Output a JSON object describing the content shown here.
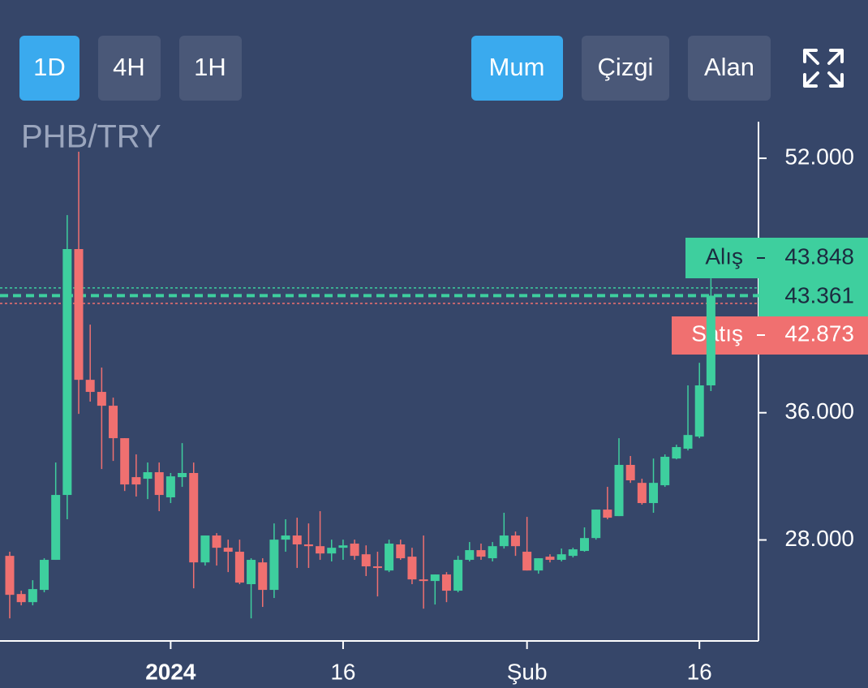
{
  "toolbar": {
    "intervals": [
      "1D",
      "4H",
      "1H"
    ],
    "chart_types": [
      "Mum",
      "Çizgi",
      "Alan"
    ]
  },
  "chart_data": {
    "type": "candlestick",
    "title": "PHB/TRY",
    "up_color": "#3ecf9e",
    "down_color": "#f07070",
    "categories": [
      null,
      null,
      null,
      null,
      null,
      null,
      null,
      null,
      null,
      null,
      null,
      null,
      null,
      null,
      "2024",
      null,
      null,
      null,
      null,
      null,
      null,
      null,
      null,
      null,
      null,
      null,
      null,
      null,
      null,
      "16",
      null,
      null,
      null,
      null,
      null,
      null,
      null,
      null,
      null,
      null,
      null,
      null,
      null,
      null,
      null,
      "Şub",
      null,
      null,
      null,
      null,
      null,
      null,
      null,
      null,
      null,
      null,
      null,
      null,
      null,
      null,
      "16",
      null
    ],
    "open": [
      27.0,
      24.6,
      24.09,
      24.86,
      26.75,
      30.83,
      46.29,
      38.07,
      37.31,
      36.44,
      34.4,
      31.95,
      31.85,
      32.26,
      30.68,
      31.95,
      32.21,
      26.59,
      28.28,
      27.51,
      27.26,
      25.22,
      26.59,
      24.86,
      28.02,
      28.28,
      27.72,
      27.61,
      27.15,
      27.51,
      27.77,
      27.1,
      26.34,
      26.08,
      27.72,
      26.95,
      25.52,
      25.42,
      25.83,
      24.81,
      26.75,
      27.36,
      26.85,
      27.61,
      28.28,
      27.26,
      26.08,
      26.95,
      26.75,
      27.0,
      27.31,
      28.12,
      29.91,
      29.5,
      32.72,
      31.59,
      30.32,
      31.44,
      33.12,
      33.74,
      34.5,
      37.72
    ],
    "high": [
      27.26,
      24.81,
      25.47,
      26.85,
      32.87,
      48.43,
      52.41,
      41.54,
      38.84,
      36.95,
      34.4,
      33.38,
      32.87,
      32.87,
      32.21,
      34.09,
      32.87,
      28.28,
      28.43,
      28.02,
      28.02,
      26.85,
      26.85,
      29.04,
      29.3,
      29.4,
      29.04,
      29.81,
      28.02,
      28.02,
      28.02,
      27.66,
      27.26,
      28.02,
      28.02,
      27.51,
      28.28,
      25.83,
      25.98,
      27.0,
      27.87,
      27.77,
      27.87,
      29.71,
      28.53,
      29.45,
      26.85,
      27.1,
      27.46,
      27.51,
      28.79,
      29.91,
      31.34,
      34.4,
      33.28,
      31.85,
      33.12,
      33.38,
      33.99,
      37.72,
      39.14,
      44.45
    ],
    "low": [
      23.07,
      23.89,
      23.89,
      24.71,
      26.75,
      29.3,
      35.93,
      36.7,
      32.46,
      32.97,
      31.08,
      30.73,
      30.57,
      29.81,
      30.32,
      31.34,
      24.96,
      26.39,
      26.39,
      25.98,
      25.22,
      23.07,
      23.79,
      24.35,
      27.26,
      26.24,
      26.24,
      26.75,
      26.65,
      26.75,
      26.75,
      25.73,
      24.45,
      25.98,
      26.75,
      25.22,
      23.68,
      23.94,
      24.09,
      24.71,
      26.65,
      26.75,
      26.65,
      27.46,
      27.0,
      26.08,
      25.88,
      26.59,
      26.65,
      26.9,
      27.26,
      28.02,
      29.3,
      29.5,
      31.59,
      30.22,
      29.71,
      31.34,
      33.07,
      33.63,
      34.4,
      37.36
    ],
    "close": [
      24.55,
      24.09,
      24.91,
      26.75,
      30.83,
      46.29,
      38.07,
      37.31,
      36.44,
      34.4,
      31.49,
      31.49,
      32.26,
      30.83,
      32.0,
      32.21,
      26.59,
      28.28,
      27.51,
      27.26,
      25.32,
      26.75,
      24.86,
      28.02,
      28.28,
      27.72,
      27.61,
      27.15,
      27.51,
      27.66,
      27.0,
      26.34,
      26.24,
      27.77,
      26.85,
      25.52,
      25.42,
      25.83,
      24.81,
      26.75,
      27.36,
      26.95,
      27.61,
      28.28,
      27.61,
      26.08,
      26.85,
      26.75,
      27.1,
      27.41,
      28.12,
      29.91,
      29.4,
      32.72,
      31.75,
      30.32,
      31.59,
      33.23,
      33.84,
      34.6,
      37.72,
      43.361
    ],
    "ylim": [
      21.65,
      54.3
    ],
    "yticks": [
      {
        "value": 28,
        "label": "28.000"
      },
      {
        "value": 36,
        "label": "36.000"
      },
      {
        "value": 52,
        "label": "52.000"
      }
    ],
    "price_lines": [
      {
        "name": "Alış",
        "value": 43.848,
        "color": "#3ecf9e"
      },
      {
        "value": 43.361,
        "color": "#3ecf9e"
      },
      {
        "name": "Satış",
        "value": 42.873,
        "color": "#f07070"
      }
    ]
  }
}
